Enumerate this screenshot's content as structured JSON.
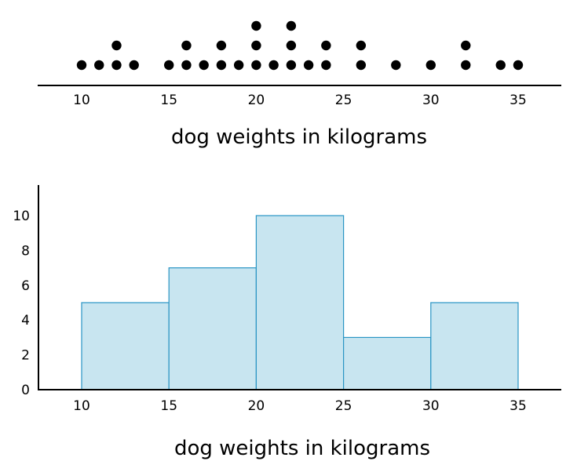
{
  "chart_data": [
    {
      "type": "scatter",
      "subtype": "dot-plot",
      "xlabel": "dog weights in kilograms",
      "xlim": [
        7.5,
        37.5
      ],
      "xticks": [
        10,
        15,
        20,
        25,
        30,
        35
      ],
      "dot_color": "#000000",
      "points": [
        {
          "x": 10,
          "count": 1
        },
        {
          "x": 11,
          "count": 1
        },
        {
          "x": 12,
          "count": 2
        },
        {
          "x": 13,
          "count": 1
        },
        {
          "x": 15,
          "count": 1
        },
        {
          "x": 16,
          "count": 2
        },
        {
          "x": 17,
          "count": 1
        },
        {
          "x": 18,
          "count": 2
        },
        {
          "x": 19,
          "count": 1
        },
        {
          "x": 20,
          "count": 3
        },
        {
          "x": 21,
          "count": 1
        },
        {
          "x": 22,
          "count": 3
        },
        {
          "x": 23,
          "count": 1
        },
        {
          "x": 24,
          "count": 2
        },
        {
          "x": 26,
          "count": 2
        },
        {
          "x": 28,
          "count": 1
        },
        {
          "x": 30,
          "count": 1
        },
        {
          "x": 32,
          "count": 2
        },
        {
          "x": 34,
          "count": 1
        },
        {
          "x": 35,
          "count": 1
        }
      ]
    },
    {
      "type": "bar",
      "subtype": "histogram",
      "xlabel": "dog weights in kilograms",
      "xlim": [
        7.5,
        37.5
      ],
      "ylim": [
        0,
        11.7
      ],
      "xticks": [
        10,
        15,
        20,
        25,
        30,
        35
      ],
      "yticks": [
        0,
        2,
        4,
        6,
        8,
        10
      ],
      "fill_color": "#c8e5f0",
      "stroke_color": "#2a95c4",
      "bins": [
        {
          "start": 10,
          "end": 15,
          "value": 5
        },
        {
          "start": 15,
          "end": 20,
          "value": 7
        },
        {
          "start": 20,
          "end": 25,
          "value": 10
        },
        {
          "start": 25,
          "end": 30,
          "value": 3
        },
        {
          "start": 30,
          "end": 35,
          "value": 5
        }
      ]
    }
  ]
}
